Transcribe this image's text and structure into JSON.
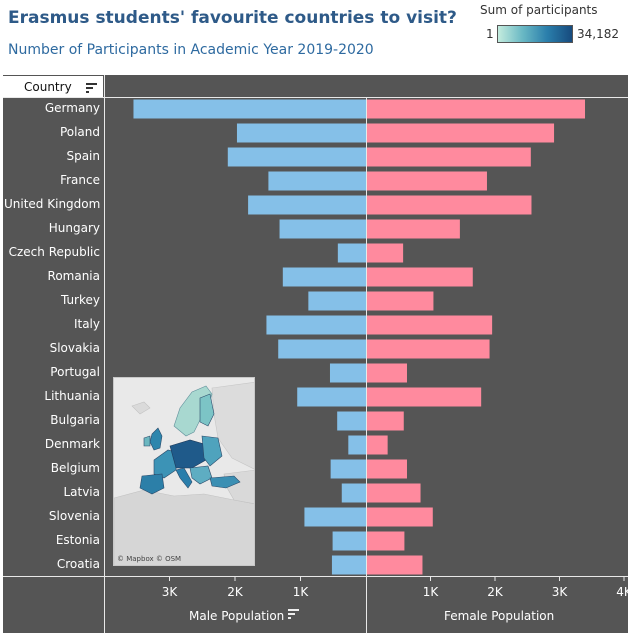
{
  "header": {
    "title": "Erasmus students' favourite countries to  visit?",
    "subtitle": "Number of Participants in Academic Year 2019-2020"
  },
  "legend": {
    "title": "Sum of participants",
    "min_label": "1",
    "max_label": "34,182",
    "gradient_colors": [
      "#c4ecde",
      "#69b8c4",
      "#2a7eab",
      "#174b7e"
    ]
  },
  "map": {
    "credit": "© Mapbox © OSM"
  },
  "chart_data": {
    "type": "bar",
    "orientation": "horizontal",
    "row_header": "Country",
    "categories": [
      "Germany",
      "Poland",
      "Spain",
      "France",
      "United Kingdom",
      "Hungary",
      "Czech Republic",
      "Romania",
      "Turkey",
      "Italy",
      "Slovakia",
      "Portugal",
      "Lithuania",
      "Bulgaria",
      "Denmark",
      "Belgium",
      "Latvia",
      "Slovenia",
      "Estonia",
      "Croatia"
    ],
    "series": [
      {
        "name": "Male Population",
        "color": "#85c0e8",
        "values": [
          3550,
          1970,
          2110,
          1490,
          1800,
          1320,
          430,
          1270,
          880,
          1520,
          1340,
          550,
          1050,
          440,
          270,
          540,
          370,
          940,
          510,
          520
        ],
        "xlim": [
          4000,
          0
        ],
        "ticks": [
          3000,
          2000,
          1000
        ],
        "tick_labels": [
          "3K",
          "2K",
          "1K"
        ]
      },
      {
        "name": "Female Population",
        "color": "#ff8a9e",
        "values": [
          3380,
          2900,
          2540,
          1860,
          2550,
          1440,
          560,
          1640,
          1030,
          1940,
          1900,
          620,
          1770,
          570,
          320,
          620,
          830,
          1020,
          580,
          860
        ],
        "xlim": [
          0,
          4000
        ],
        "ticks": [
          1000,
          2000,
          3000,
          4000
        ],
        "tick_labels": [
          "1K",
          "2K",
          "3K",
          "4K"
        ]
      }
    ],
    "grid": false
  }
}
